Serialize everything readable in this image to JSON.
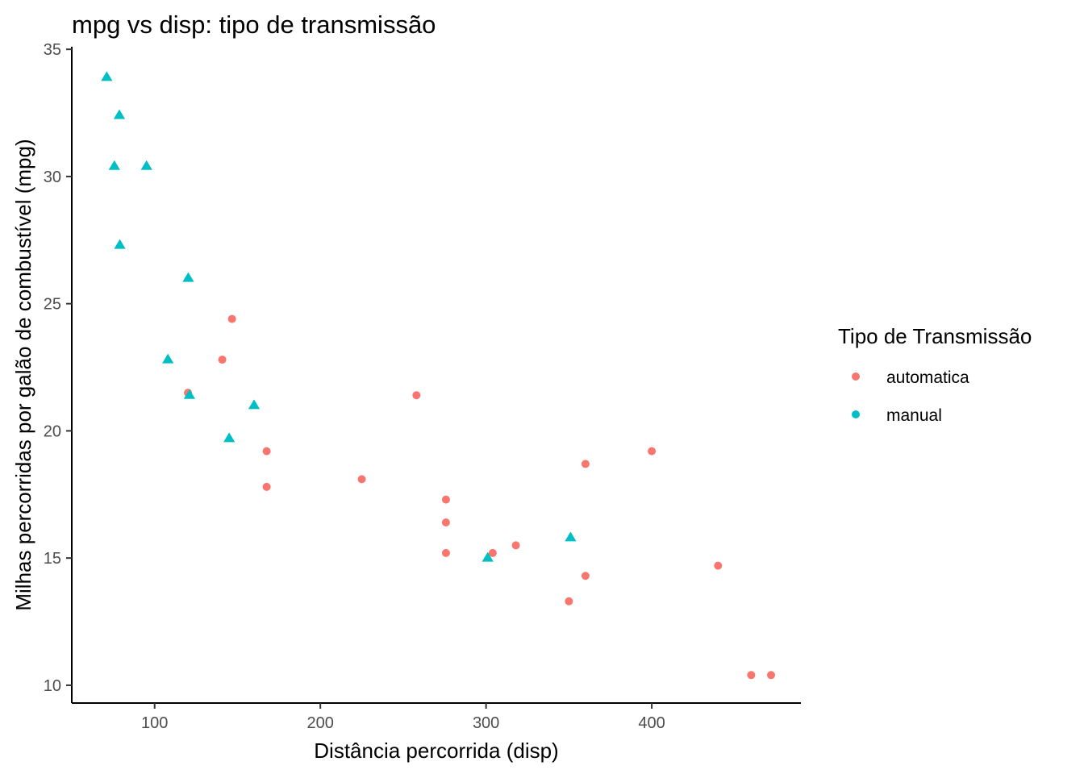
{
  "chart_data": {
    "type": "scatter",
    "title": "mpg vs disp: tipo de transmissão",
    "xlabel": "Distância percorrida (disp)",
    "ylabel": "Milhas percorridas por galão de combustível (mpg)",
    "xlim": [
      50,
      490
    ],
    "ylim": [
      9.3,
      35.1
    ],
    "xticks": [
      100,
      200,
      300,
      400
    ],
    "yticks": [
      10,
      15,
      20,
      25,
      30,
      35
    ],
    "grid": false,
    "legend": {
      "title": "Tipo de Transmissão",
      "position": "right"
    },
    "series": [
      {
        "name": "automatica",
        "color": "#F8766D",
        "marker": "circle",
        "points": [
          [
            146.7,
            24.4
          ],
          [
            140.8,
            22.8
          ],
          [
            120.1,
            21.5
          ],
          [
            258,
            21.4
          ],
          [
            167.6,
            19.2
          ],
          [
            400,
            19.2
          ],
          [
            360,
            18.7
          ],
          [
            225,
            18.1
          ],
          [
            167.6,
            17.8
          ],
          [
            275.8,
            17.3
          ],
          [
            275.8,
            16.4
          ],
          [
            304,
            15.2
          ],
          [
            275.8,
            15.2
          ],
          [
            318,
            15.5
          ],
          [
            360,
            14.3
          ],
          [
            440,
            14.7
          ],
          [
            350,
            13.3
          ],
          [
            460,
            10.4
          ],
          [
            472,
            10.4
          ]
        ]
      },
      {
        "name": "manual",
        "color": "#00BFC4",
        "marker": "triangle",
        "points": [
          [
            71.1,
            33.9
          ],
          [
            78.7,
            32.4
          ],
          [
            75.7,
            30.4
          ],
          [
            95.1,
            30.4
          ],
          [
            79,
            27.3
          ],
          [
            120.3,
            26
          ],
          [
            108,
            22.8
          ],
          [
            121,
            21.4
          ],
          [
            160,
            21
          ],
          [
            145,
            19.7
          ],
          [
            301,
            15
          ],
          [
            351,
            15.8
          ]
        ]
      }
    ]
  }
}
